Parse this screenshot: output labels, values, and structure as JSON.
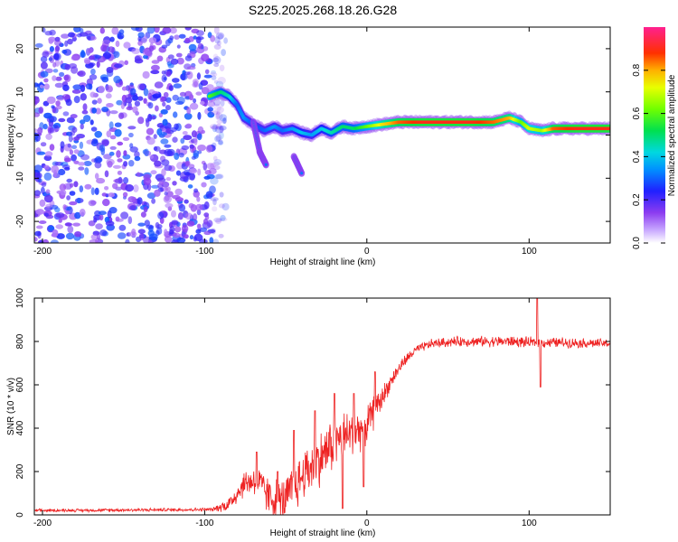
{
  "title": "S225.2025.268.18.26.G28",
  "colors": {
    "snr_line": "#ee2222",
    "noise": "#8a4cf0",
    "axis": "#000000"
  },
  "chart_data": [
    {
      "type": "heatmap",
      "name": "spectrogram",
      "xlabel": "Height of straight line (km)",
      "ylabel": "Frequency (Hz)",
      "xlim": [
        -205,
        150
      ],
      "ylim": [
        -25,
        25
      ],
      "xticks": [
        {
          "value": -200,
          "label": "-200"
        },
        {
          "value": -100,
          "label": "-100"
        },
        {
          "value": 0,
          "label": "0"
        },
        {
          "value": 100,
          "label": "100"
        }
      ],
      "yticks": [
        {
          "value": -20,
          "label": "-20"
        },
        {
          "value": -10,
          "label": "-10"
        },
        {
          "value": 0,
          "label": "0"
        },
        {
          "value": 10,
          "label": "10"
        },
        {
          "value": 20,
          "label": "20"
        }
      ],
      "noise_region_x": [
        -205,
        -95
      ],
      "signal_track": [
        {
          "x": -97,
          "y": 9,
          "amp": 0.6
        },
        {
          "x": -90,
          "y": 10,
          "amp": 0.5
        },
        {
          "x": -85,
          "y": 9,
          "amp": 0.45
        },
        {
          "x": -80,
          "y": 7,
          "amp": 0.3
        },
        {
          "x": -76,
          "y": 4,
          "amp": 0.35
        },
        {
          "x": -72,
          "y": 3,
          "amp": 0.3
        },
        {
          "x": -68,
          "y": 2,
          "amp": 0.28
        },
        {
          "x": -63,
          "y": 1,
          "amp": 0.3
        },
        {
          "x": -57,
          "y": 2,
          "amp": 0.35
        },
        {
          "x": -52,
          "y": 1,
          "amp": 0.3
        },
        {
          "x": -46,
          "y": 1.5,
          "amp": 0.35
        },
        {
          "x": -40,
          "y": 0.5,
          "amp": 0.4
        },
        {
          "x": -34,
          "y": 0,
          "amp": 0.35
        },
        {
          "x": -28,
          "y": 1.5,
          "amp": 0.4
        },
        {
          "x": -22,
          "y": 0.5,
          "amp": 0.45
        },
        {
          "x": -15,
          "y": 2,
          "amp": 0.5
        },
        {
          "x": -8,
          "y": 1.5,
          "amp": 0.5
        },
        {
          "x": 0,
          "y": 2,
          "amp": 0.6
        },
        {
          "x": 10,
          "y": 2.5,
          "amp": 0.75
        },
        {
          "x": 20,
          "y": 3,
          "amp": 0.85
        },
        {
          "x": 35,
          "y": 3,
          "amp": 0.9
        },
        {
          "x": 50,
          "y": 3,
          "amp": 0.9
        },
        {
          "x": 65,
          "y": 3,
          "amp": 0.9
        },
        {
          "x": 78,
          "y": 3,
          "amp": 0.85
        },
        {
          "x": 88,
          "y": 4,
          "amp": 0.8
        },
        {
          "x": 95,
          "y": 3,
          "amp": 0.6
        },
        {
          "x": 100,
          "y": 1.5,
          "amp": 0.7
        },
        {
          "x": 108,
          "y": 1,
          "amp": 0.65
        },
        {
          "x": 115,
          "y": 1.5,
          "amp": 0.85
        },
        {
          "x": 130,
          "y": 1.5,
          "amp": 0.9
        },
        {
          "x": 150,
          "y": 1.5,
          "amp": 0.9
        }
      ],
      "side_branches": [
        [
          {
            "x": -70,
            "y": 3
          },
          {
            "x": -66,
            "y": -4
          },
          {
            "x": -62,
            "y": -7
          }
        ],
        [
          {
            "x": -45,
            "y": -5
          },
          {
            "x": -40,
            "y": -9
          }
        ]
      ],
      "colorbar": {
        "label": "Normalized spectral amplitude",
        "range": [
          0,
          1
        ],
        "ticks": [
          {
            "value": 0,
            "label": "0.0"
          },
          {
            "value": 0.2,
            "label": "0.2"
          },
          {
            "value": 0.4,
            "label": "0.4"
          },
          {
            "value": 0.6,
            "label": "0.6"
          },
          {
            "value": 0.8,
            "label": "0.8"
          }
        ]
      }
    },
    {
      "type": "line",
      "name": "snr",
      "xlabel": "Height of straight line (km)",
      "ylabel": "SNR (10 * v/v)",
      "xlim": [
        -205,
        150
      ],
      "ylim": [
        0,
        1000
      ],
      "xticks": [
        {
          "value": -200,
          "label": "-200"
        },
        {
          "value": -100,
          "label": "-100"
        },
        {
          "value": 0,
          "label": "0"
        },
        {
          "value": 100,
          "label": "100"
        }
      ],
      "yticks": [
        {
          "value": 0,
          "label": "0"
        },
        {
          "value": 200,
          "label": "200"
        },
        {
          "value": 400,
          "label": "400"
        },
        {
          "value": 600,
          "label": "600"
        },
        {
          "value": 800,
          "label": "800"
        },
        {
          "value": 1000,
          "label": "1000"
        }
      ],
      "trend": [
        {
          "x": -205,
          "y": 20
        },
        {
          "x": -95,
          "y": 25
        },
        {
          "x": -85,
          "y": 50
        },
        {
          "x": -75,
          "y": 150
        },
        {
          "x": -68,
          "y": 160
        },
        {
          "x": -60,
          "y": 80
        },
        {
          "x": -52,
          "y": 60
        },
        {
          "x": -45,
          "y": 120
        },
        {
          "x": -38,
          "y": 200
        },
        {
          "x": -30,
          "y": 250
        },
        {
          "x": -22,
          "y": 320
        },
        {
          "x": -15,
          "y": 360
        },
        {
          "x": -8,
          "y": 380
        },
        {
          "x": 0,
          "y": 420
        },
        {
          "x": 8,
          "y": 520
        },
        {
          "x": 15,
          "y": 620
        },
        {
          "x": 22,
          "y": 700
        },
        {
          "x": 30,
          "y": 760
        },
        {
          "x": 40,
          "y": 790
        },
        {
          "x": 55,
          "y": 800
        },
        {
          "x": 70,
          "y": 800
        },
        {
          "x": 90,
          "y": 800
        },
        {
          "x": 100,
          "y": 795
        },
        {
          "x": 120,
          "y": 795
        },
        {
          "x": 150,
          "y": 790
        }
      ],
      "noise_amplitude": [
        {
          "x": -205,
          "a": 8
        },
        {
          "x": -95,
          "a": 10
        },
        {
          "x": -80,
          "a": 60
        },
        {
          "x": -60,
          "a": 110
        },
        {
          "x": -40,
          "a": 140
        },
        {
          "x": -20,
          "a": 150
        },
        {
          "x": 0,
          "a": 110
        },
        {
          "x": 15,
          "a": 40
        },
        {
          "x": 30,
          "a": 25
        },
        {
          "x": 90,
          "a": 30
        },
        {
          "x": 150,
          "a": 25
        }
      ],
      "features": [
        {
          "x": -68,
          "y": 290
        },
        {
          "x": -55,
          "y": 200
        },
        {
          "x": -45,
          "y": 390
        },
        {
          "x": -32,
          "y": 480
        },
        {
          "x": -20,
          "y": 560
        },
        {
          "x": -15,
          "y": 30
        },
        {
          "x": -8,
          "y": 560
        },
        {
          "x": -2,
          "y": 130
        },
        {
          "x": 5,
          "y": 660
        },
        {
          "x": 105,
          "y": 1000
        },
        {
          "x": 107,
          "y": 590
        }
      ]
    }
  ]
}
